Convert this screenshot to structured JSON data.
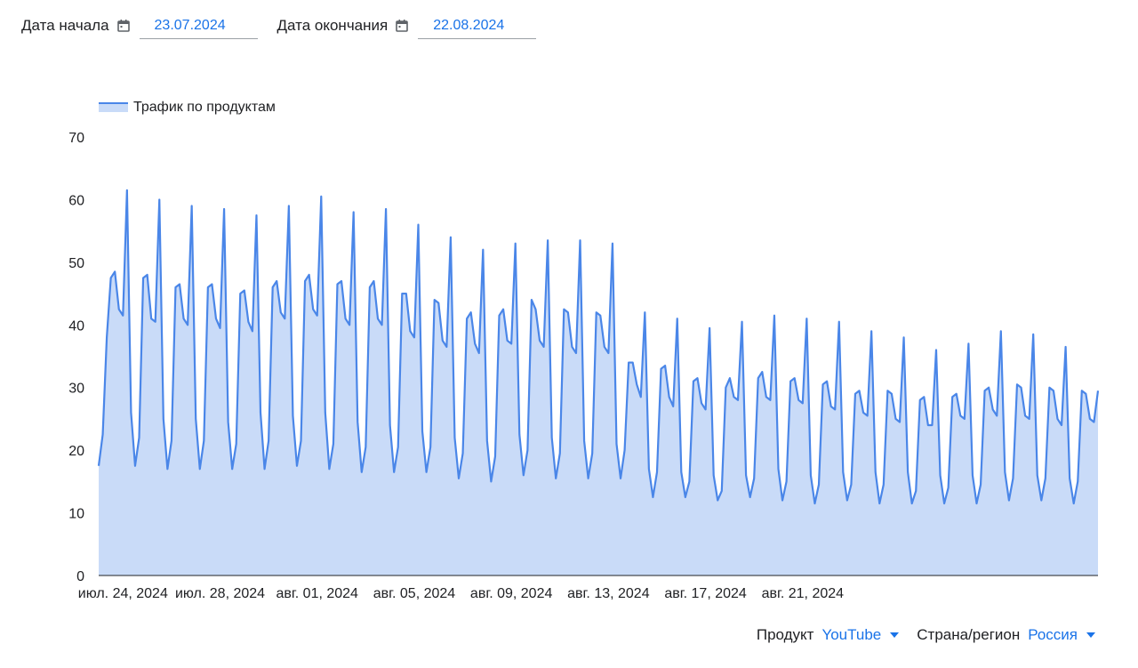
{
  "filters": {
    "start": {
      "label": "Дата начала",
      "value": "23.07.2024",
      "icon": "calendar-icon"
    },
    "end": {
      "label": "Дата окончания",
      "value": "22.08.2024",
      "icon": "calendar-icon"
    }
  },
  "selectors": {
    "product": {
      "label": "Продукт",
      "value": "YouTube"
    },
    "region": {
      "label": "Страна/регион",
      "value": "Россия"
    }
  },
  "colors": {
    "accent": "#1a73e8",
    "line": "#4a86e8",
    "fill": "#c9dbf8",
    "axis": "#202124"
  },
  "chart_data": {
    "type": "area",
    "title": "",
    "xlabel": "",
    "ylabel": "",
    "legend": {
      "label": "Трафик по продуктам",
      "position": "top-left"
    },
    "ylim": [
      0,
      70
    ],
    "yticks": [
      0,
      10,
      20,
      30,
      40,
      50,
      60,
      70
    ],
    "grid": false,
    "xtick_labels": [
      "июл. 24, 2024",
      "июл. 28, 2024",
      "авг. 01, 2024",
      "авг. 05, 2024",
      "авг. 09, 2024",
      "авг. 13, 2024",
      "авг. 17, 2024",
      "авг. 21, 2024"
    ],
    "x_start": "2024-07-23",
    "sample_interval_hours": 4,
    "series": [
      {
        "name": "Трафик по продуктам",
        "values": [
          17.5,
          22.5,
          38.0,
          47.5,
          48.5,
          42.5,
          41.5,
          61.5,
          26.0,
          17.5,
          22.0,
          47.5,
          48.0,
          41.0,
          40.5,
          60.0,
          25.0,
          17.0,
          21.5,
          46.0,
          46.5,
          41.0,
          40.0,
          59.0,
          25.0,
          17.0,
          21.5,
          46.0,
          46.5,
          41.0,
          39.5,
          58.5,
          24.5,
          17.0,
          21.0,
          45.0,
          45.5,
          40.5,
          39.0,
          57.5,
          26.0,
          17.0,
          21.5,
          46.0,
          47.0,
          42.0,
          41.0,
          59.0,
          25.5,
          17.5,
          21.5,
          47.0,
          48.0,
          42.5,
          41.5,
          60.5,
          26.0,
          17.0,
          21.0,
          46.5,
          47.0,
          41.0,
          40.0,
          58.0,
          24.5,
          16.5,
          20.5,
          46.0,
          47.0,
          41.0,
          40.0,
          58.5,
          24.0,
          16.5,
          20.5,
          45.0,
          45.0,
          39.0,
          38.0,
          56.0,
          23.0,
          16.5,
          20.5,
          44.0,
          43.5,
          37.5,
          36.5,
          54.0,
          22.0,
          15.5,
          19.5,
          41.0,
          42.0,
          37.0,
          35.5,
          52.0,
          21.5,
          15.0,
          19.0,
          41.5,
          42.5,
          37.5,
          37.0,
          53.0,
          22.5,
          16.0,
          20.0,
          44.0,
          42.5,
          37.5,
          36.5,
          53.5,
          22.0,
          15.5,
          19.5,
          42.5,
          42.0,
          36.5,
          35.5,
          53.5,
          21.5,
          15.5,
          19.5,
          42.0,
          41.5,
          36.5,
          35.5,
          53.0,
          21.0,
          15.5,
          20.0,
          34.0,
          34.0,
          30.5,
          28.5,
          42.0,
          17.0,
          12.5,
          16.5,
          33.0,
          33.5,
          28.5,
          27.0,
          41.0,
          16.5,
          12.5,
          15.0,
          31.0,
          31.5,
          27.5,
          26.5,
          39.5,
          16.0,
          12.0,
          13.5,
          30.0,
          31.5,
          28.5,
          28.0,
          40.5,
          16.0,
          12.5,
          15.5,
          31.5,
          32.5,
          28.5,
          28.0,
          41.5,
          17.0,
          12.0,
          15.0,
          31.0,
          31.5,
          28.0,
          27.5,
          41.0,
          16.0,
          11.5,
          14.5,
          30.5,
          31.0,
          27.0,
          26.5,
          40.5,
          16.5,
          12.0,
          14.5,
          29.0,
          29.5,
          26.0,
          25.5,
          39.0,
          16.5,
          11.5,
          14.5,
          29.5,
          29.0,
          25.0,
          24.5,
          38.0,
          16.5,
          11.5,
          13.5,
          28.0,
          28.5,
          24.0,
          24.0,
          36.0,
          16.0,
          11.5,
          14.0,
          28.5,
          29.0,
          25.5,
          25.0,
          37.0,
          16.0,
          11.5,
          14.5,
          29.5,
          30.0,
          26.5,
          25.5,
          39.0,
          16.5,
          12.0,
          15.5,
          30.5,
          30.0,
          25.5,
          25.0,
          38.5,
          16.0,
          12.0,
          15.5,
          30.0,
          29.5,
          25.0,
          24.0,
          36.5,
          15.5,
          11.5,
          15.0,
          29.5,
          29.0,
          25.0,
          24.5,
          29.5
        ]
      }
    ]
  }
}
